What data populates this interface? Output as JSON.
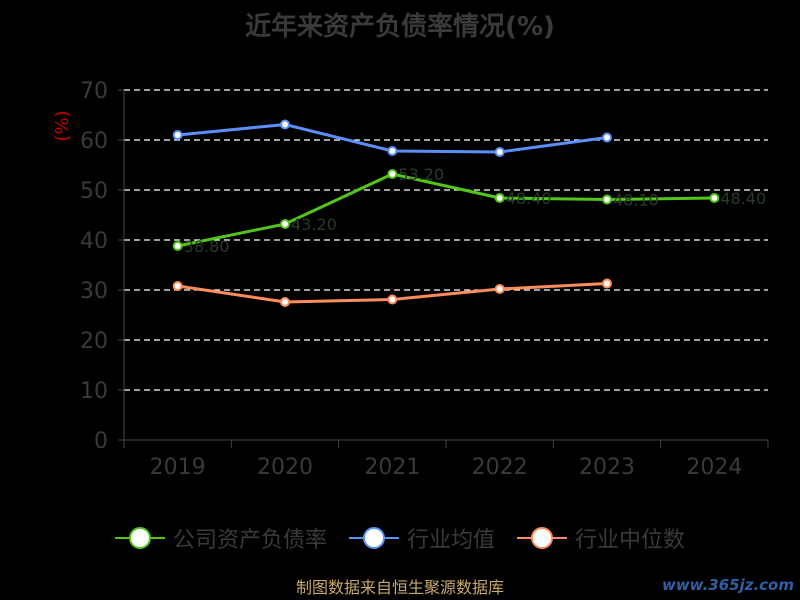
{
  "title": "近年来资产负债率情况(%)",
  "source_text": "制图数据来自恒生聚源数据库",
  "watermark_text": "www.365jz.com",
  "chart_data": {
    "type": "line",
    "title": "近年来资产负债率情况(%)",
    "ylabel": "(%)",
    "xlabel": "",
    "categories": [
      "2019",
      "2020",
      "2021",
      "2022",
      "2023",
      "2024"
    ],
    "ylim": [
      0,
      70
    ],
    "yticks": [
      0,
      10,
      20,
      30,
      40,
      50,
      60,
      70
    ],
    "grid": true,
    "legend_position": "bottom",
    "series": [
      {
        "name": "公司资产负债率",
        "color": "#52c41a",
        "values": [
          38.8,
          43.2,
          53.2,
          48.4,
          48.1,
          48.4
        ]
      },
      {
        "name": "行业均值",
        "color": "#5b8ff9",
        "values": [
          61.0,
          63.1,
          57.8,
          57.6,
          60.5,
          null
        ]
      },
      {
        "name": "行业中位数",
        "color": "#ff8c5a",
        "values": [
          30.8,
          27.6,
          28.1,
          30.2,
          31.3,
          null
        ]
      }
    ]
  }
}
